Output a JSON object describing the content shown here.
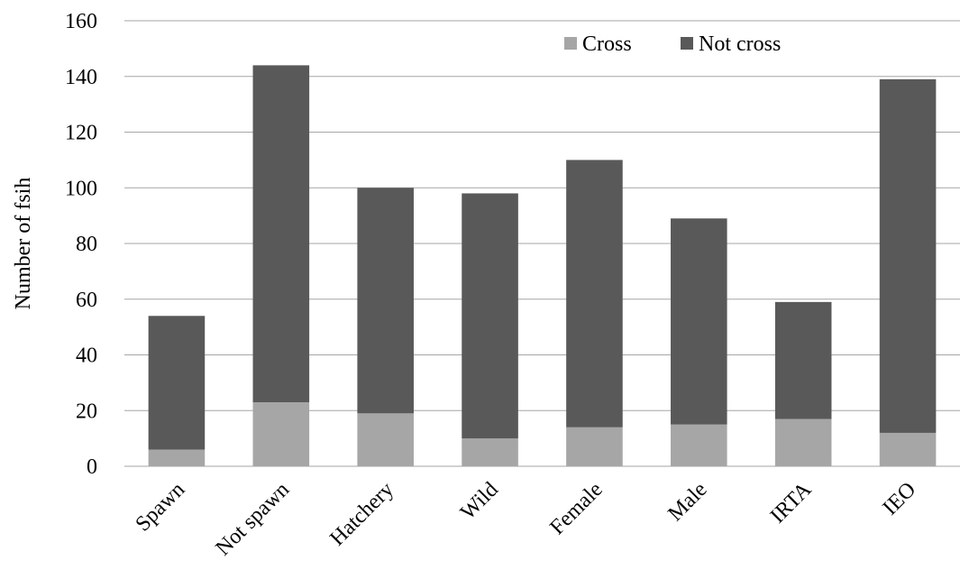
{
  "chart_data": {
    "type": "bar",
    "stacked": true,
    "categories": [
      "Spawn",
      "Not spawn",
      "Hatchery",
      "Wild",
      "Female",
      "Male",
      "IRTA",
      "IEO"
    ],
    "series": [
      {
        "name": "Cross",
        "color": "#a6a6a6",
        "values": [
          6,
          23,
          19,
          10,
          14,
          15,
          17,
          12
        ]
      },
      {
        "name": "Not cross",
        "color": "#595959",
        "values": [
          48,
          121,
          81,
          88,
          96,
          74,
          42,
          127
        ]
      }
    ],
    "title": "",
    "xlabel": "",
    "ylabel": "Number of fsih",
    "ylim": [
      0,
      160
    ],
    "yticks": [
      0,
      20,
      40,
      60,
      80,
      100,
      120,
      140,
      160
    ],
    "grid": true,
    "legend_position": "top-right"
  }
}
